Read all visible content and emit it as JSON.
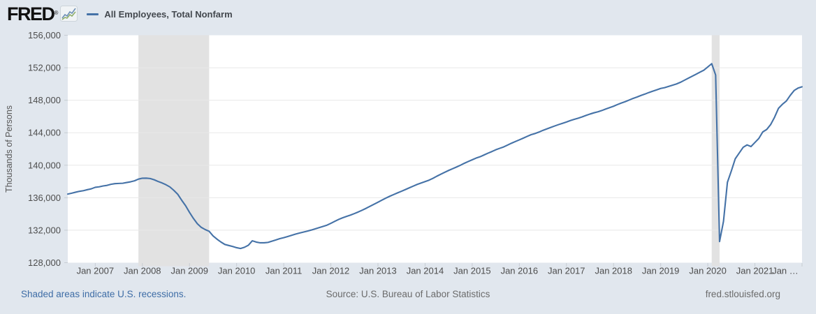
{
  "header": {
    "logo_text": "FRED",
    "logo_registered": "®",
    "legend_label": "All Employees, Total Nonfarm"
  },
  "footer": {
    "recession_note": "Shaded areas indicate U.S. recessions.",
    "source": "Source: U.S. Bureau of Labor Statistics",
    "site": "fred.stlouisfed.org"
  },
  "colors": {
    "page_background": "#e1e7ee",
    "plot_background": "#ffffff",
    "line": "#4572a7",
    "recession_band": "#e2e2e2",
    "gridline": "#e8e8e8",
    "axis_text": "#4d4d4d",
    "footer_link": "#3e6da6",
    "footer_text": "#6b6b6b",
    "tick": "#c7ccd3"
  },
  "chart_data": {
    "type": "line",
    "title": "All Employees, Total Nonfarm",
    "ylabel": "Thousands of Persons",
    "xlabel": "",
    "units": "Thousands of Persons",
    "frequency": "monthly",
    "x_start": "2006-06",
    "x_end": "2022-01",
    "ylim": [
      128000,
      156000
    ],
    "y_ticks": [
      128000,
      132000,
      136000,
      140000,
      144000,
      148000,
      152000,
      156000
    ],
    "y_tick_labels": [
      "128,000",
      "132,000",
      "136,000",
      "140,000",
      "144,000",
      "148,000",
      "152,000",
      "156,000"
    ],
    "grid": "horizontal-only",
    "legend_position": "top-left",
    "x_tick_labels": [
      {
        "label": "Jan 2007",
        "month_index": 7
      },
      {
        "label": "Jan 2008",
        "month_index": 19
      },
      {
        "label": "Jan 2009",
        "month_index": 31
      },
      {
        "label": "Jan 2010",
        "month_index": 43
      },
      {
        "label": "Jan 2011",
        "month_index": 55
      },
      {
        "label": "Jan 2012",
        "month_index": 67
      },
      {
        "label": "Jan 2013",
        "month_index": 79
      },
      {
        "label": "Jan 2014",
        "month_index": 91
      },
      {
        "label": "Jan 2015",
        "month_index": 103
      },
      {
        "label": "Jan 2016",
        "month_index": 115
      },
      {
        "label": "Jan 2017",
        "month_index": 127
      },
      {
        "label": "Jan 2018",
        "month_index": 139
      },
      {
        "label": "Jan 2019",
        "month_index": 151
      },
      {
        "label": "Jan 2020",
        "month_index": 163
      },
      {
        "label": "Jan 2021",
        "month_index": 175
      },
      {
        "label": "Jan …",
        "month_index": 187
      }
    ],
    "recessions": [
      {
        "name": "Great Recession",
        "start": "2007-12",
        "end": "2009-06",
        "start_index": 18,
        "end_index": 36
      },
      {
        "name": "COVID-19 Recession",
        "start": "2020-02",
        "end": "2020-04",
        "start_index": 164,
        "end_index": 166
      }
    ],
    "series": [
      {
        "name": "All Employees, Total Nonfarm",
        "color": "#4572a7",
        "values": [
          136450,
          136560,
          136680,
          136790,
          136870,
          136990,
          137100,
          137280,
          137340,
          137450,
          137520,
          137650,
          137730,
          137760,
          137780,
          137870,
          137960,
          138080,
          138290,
          138400,
          138410,
          138360,
          138210,
          138000,
          137820,
          137600,
          137330,
          136910,
          136430,
          135700,
          135020,
          134200,
          133450,
          132800,
          132350,
          132080,
          131870,
          131300,
          130900,
          130550,
          130250,
          130120,
          130000,
          129850,
          129750,
          129900,
          130150,
          130700,
          130540,
          130450,
          130450,
          130500,
          130650,
          130800,
          130960,
          131080,
          131220,
          131370,
          131520,
          131650,
          131770,
          131890,
          132020,
          132170,
          132320,
          132470,
          132620,
          132850,
          133090,
          133330,
          133530,
          133700,
          133860,
          134050,
          134250,
          134470,
          134700,
          134950,
          135200,
          135450,
          135700,
          135950,
          136180,
          136390,
          136600,
          136800,
          137010,
          137220,
          137430,
          137640,
          137810,
          137980,
          138160,
          138390,
          138650,
          138890,
          139130,
          139360,
          139570,
          139780,
          140000,
          140240,
          140460,
          140670,
          140880,
          141040,
          141260,
          141480,
          141680,
          141900,
          142080,
          142250,
          142480,
          142710,
          142920,
          143120,
          143330,
          143550,
          143760,
          143900,
          144080,
          144290,
          144470,
          144650,
          144830,
          145000,
          145160,
          145320,
          145500,
          145650,
          145790,
          145950,
          146130,
          146300,
          146450,
          146570,
          146730,
          146920,
          147090,
          147260,
          147470,
          147660,
          147830,
          148030,
          148230,
          148400,
          148590,
          148760,
          148950,
          149120,
          149280,
          149450,
          149550,
          149700,
          149850,
          150000,
          150200,
          150450,
          150700,
          150950,
          151200,
          151450,
          151700,
          152100,
          152500,
          151100,
          130600,
          133100,
          137900,
          139300,
          140800,
          141500,
          142200,
          142500,
          142300,
          142800,
          143300,
          144100,
          144400,
          145000,
          145900,
          147000,
          147500,
          147900,
          148600,
          149200,
          149500,
          149650
        ]
      }
    ]
  }
}
